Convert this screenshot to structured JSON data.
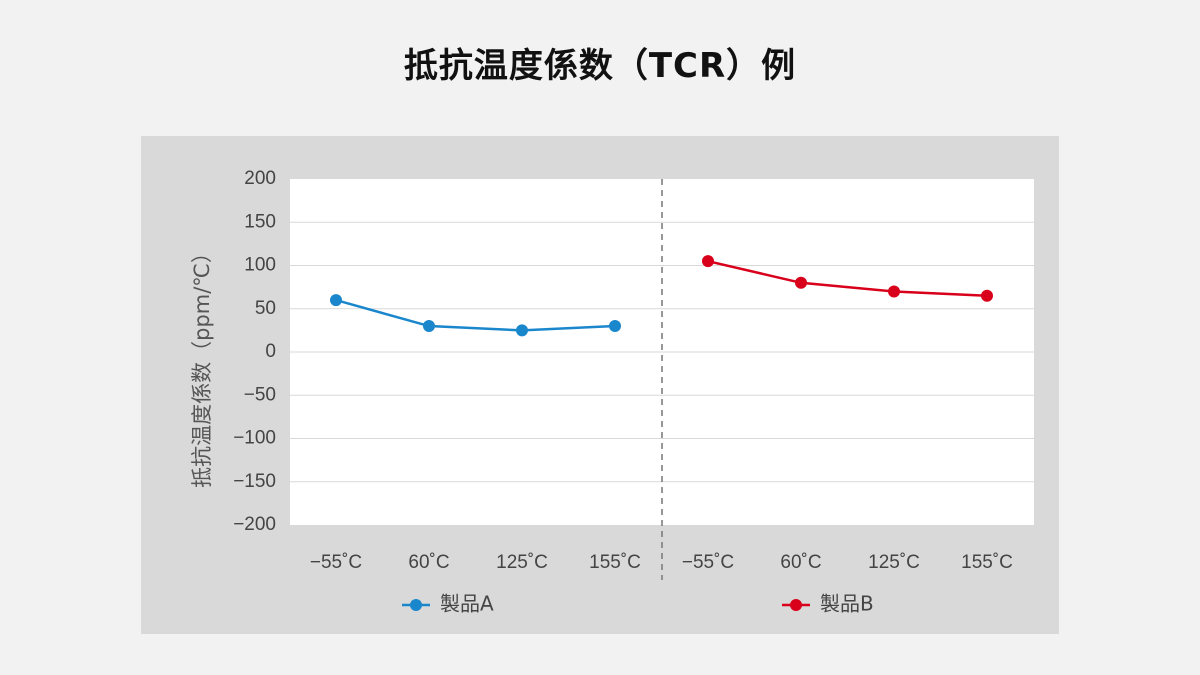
{
  "title": "抵抗温度係数（TCR）例",
  "chart_data": {
    "type": "line",
    "ylabel": "抵抗温度係数（ppm/℃）",
    "ylim": [
      -200,
      200
    ],
    "yticks": [
      "200",
      "150",
      "100",
      "50",
      "0",
      "−50",
      "−100",
      "−150",
      "−200"
    ],
    "grid": true,
    "groups": [
      {
        "categories": [
          "−55˚C",
          "60˚C",
          "125˚C",
          "155˚C"
        ],
        "series": {
          "name": "製品A",
          "color": "#1a87cc",
          "values": [
            60,
            30,
            25,
            30
          ]
        }
      },
      {
        "categories": [
          "−55˚C",
          "60˚C",
          "125˚C",
          "155˚C"
        ],
        "series": {
          "name": "製品B",
          "color": "#d9001b",
          "values": [
            105,
            80,
            70,
            65
          ]
        }
      }
    ],
    "legend_placement": "bottom"
  }
}
